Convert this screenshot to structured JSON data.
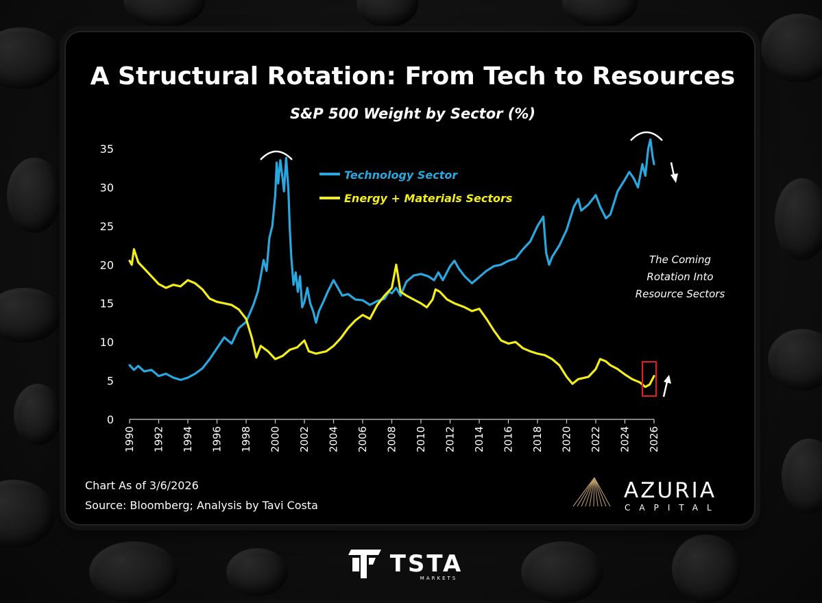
{
  "chart_data": {
    "type": "line",
    "title": "A Structural Rotation: From Tech to Resources",
    "subtitle": "S&P 500 Weight by Sector (%)",
    "ylim": [
      0,
      35
    ],
    "yticks": [
      "0",
      "5",
      "10",
      "15",
      "20",
      "25",
      "30",
      "35"
    ],
    "xticks": [
      "1990",
      "1992",
      "1994",
      "1996",
      "1998",
      "2000",
      "2002",
      "2004",
      "2006",
      "2008",
      "2010",
      "2012",
      "2014",
      "2016",
      "2018",
      "2020",
      "2022",
      "2024",
      "2026"
    ],
    "xlim": [
      1990,
      2026
    ],
    "series": [
      {
        "name": "Technology Sector",
        "color": "#29a8e0",
        "points": [
          [
            1990.0,
            7.0
          ],
          [
            1990.3,
            6.4
          ],
          [
            1990.6,
            6.9
          ],
          [
            1991.0,
            6.2
          ],
          [
            1991.5,
            6.4
          ],
          [
            1992.0,
            5.6
          ],
          [
            1992.5,
            5.9
          ],
          [
            1993.0,
            5.4
          ],
          [
            1993.5,
            5.1
          ],
          [
            1994.0,
            5.4
          ],
          [
            1994.5,
            5.9
          ],
          [
            1995.0,
            6.6
          ],
          [
            1995.5,
            7.8
          ],
          [
            1996.0,
            9.2
          ],
          [
            1996.5,
            10.6
          ],
          [
            1997.0,
            9.8
          ],
          [
            1997.5,
            11.8
          ],
          [
            1998.0,
            12.6
          ],
          [
            1998.5,
            14.8
          ],
          [
            1998.8,
            16.5
          ],
          [
            1999.0,
            18.5
          ],
          [
            1999.2,
            20.6
          ],
          [
            1999.4,
            19.2
          ],
          [
            1999.6,
            23.5
          ],
          [
            1999.8,
            25.0
          ],
          [
            2000.0,
            29.0
          ],
          [
            2000.1,
            33.2
          ],
          [
            2000.2,
            30.5
          ],
          [
            2000.35,
            33.5
          ],
          [
            2000.5,
            31.2
          ],
          [
            2000.6,
            29.5
          ],
          [
            2000.75,
            33.8
          ],
          [
            2000.9,
            29.8
          ],
          [
            2001.0,
            24.5
          ],
          [
            2001.1,
            21.0
          ],
          [
            2001.25,
            17.4
          ],
          [
            2001.4,
            19.0
          ],
          [
            2001.55,
            16.5
          ],
          [
            2001.7,
            18.5
          ],
          [
            2001.85,
            14.5
          ],
          [
            2002.0,
            15.2
          ],
          [
            2002.2,
            17.0
          ],
          [
            2002.4,
            15.0
          ],
          [
            2002.6,
            14.0
          ],
          [
            2002.8,
            12.5
          ],
          [
            2003.0,
            14.0
          ],
          [
            2003.3,
            15.2
          ],
          [
            2003.6,
            16.5
          ],
          [
            2004.0,
            18.0
          ],
          [
            2004.3,
            17.0
          ],
          [
            2004.6,
            16.0
          ],
          [
            2005.0,
            16.2
          ],
          [
            2005.5,
            15.5
          ],
          [
            2006.0,
            15.4
          ],
          [
            2006.5,
            14.8
          ],
          [
            2007.0,
            15.3
          ],
          [
            2007.5,
            15.6
          ],
          [
            2007.8,
            16.5
          ],
          [
            2008.0,
            16.3
          ],
          [
            2008.3,
            17.0
          ],
          [
            2008.6,
            16.0
          ],
          [
            2009.0,
            17.8
          ],
          [
            2009.5,
            18.6
          ],
          [
            2010.0,
            18.8
          ],
          [
            2010.5,
            18.5
          ],
          [
            2010.9,
            18.0
          ],
          [
            2011.2,
            19.0
          ],
          [
            2011.5,
            18.0
          ],
          [
            2012.0,
            19.8
          ],
          [
            2012.3,
            20.5
          ],
          [
            2012.6,
            19.5
          ],
          [
            2013.0,
            18.5
          ],
          [
            2013.5,
            17.6
          ],
          [
            2014.0,
            18.4
          ],
          [
            2014.5,
            19.2
          ],
          [
            2015.0,
            19.8
          ],
          [
            2015.5,
            20.0
          ],
          [
            2016.0,
            20.5
          ],
          [
            2016.5,
            20.8
          ],
          [
            2017.0,
            22.0
          ],
          [
            2017.5,
            23.0
          ],
          [
            2018.0,
            25.0
          ],
          [
            2018.4,
            26.2
          ],
          [
            2018.6,
            21.5
          ],
          [
            2018.8,
            20.0
          ],
          [
            2019.0,
            21.0
          ],
          [
            2019.5,
            22.5
          ],
          [
            2020.0,
            24.5
          ],
          [
            2020.5,
            27.5
          ],
          [
            2020.8,
            28.5
          ],
          [
            2021.0,
            27.0
          ],
          [
            2021.5,
            27.8
          ],
          [
            2022.0,
            29.0
          ],
          [
            2022.3,
            27.5
          ],
          [
            2022.7,
            26.0
          ],
          [
            2023.0,
            26.5
          ],
          [
            2023.5,
            29.5
          ],
          [
            2024.0,
            31.0
          ],
          [
            2024.3,
            32.0
          ],
          [
            2024.6,
            31.2
          ],
          [
            2024.9,
            30.0
          ],
          [
            2025.2,
            33.0
          ],
          [
            2025.4,
            31.5
          ],
          [
            2025.6,
            35.0
          ],
          [
            2025.75,
            36.2
          ],
          [
            2025.9,
            34.0
          ],
          [
            2026.0,
            33.0
          ]
        ]
      },
      {
        "name": "Energy + Materials Sectors",
        "color": "#f2ed1b",
        "points": [
          [
            1990.0,
            20.5
          ],
          [
            1990.15,
            20.0
          ],
          [
            1990.3,
            22.0
          ],
          [
            1990.6,
            20.3
          ],
          [
            1991.0,
            19.5
          ],
          [
            1991.5,
            18.5
          ],
          [
            1992.0,
            17.5
          ],
          [
            1992.5,
            17.0
          ],
          [
            1993.0,
            17.4
          ],
          [
            1993.5,
            17.2
          ],
          [
            1994.0,
            18.0
          ],
          [
            1994.5,
            17.6
          ],
          [
            1995.0,
            16.8
          ],
          [
            1995.5,
            15.6
          ],
          [
            1996.0,
            15.2
          ],
          [
            1996.5,
            15.0
          ],
          [
            1997.0,
            14.8
          ],
          [
            1997.5,
            14.2
          ],
          [
            1998.0,
            13.0
          ],
          [
            1998.4,
            10.5
          ],
          [
            1998.7,
            8.0
          ],
          [
            1999.0,
            9.5
          ],
          [
            1999.5,
            8.8
          ],
          [
            2000.0,
            7.8
          ],
          [
            2000.5,
            8.2
          ],
          [
            2001.0,
            9.0
          ],
          [
            2001.5,
            9.3
          ],
          [
            2002.0,
            10.2
          ],
          [
            2002.3,
            8.8
          ],
          [
            2002.8,
            8.5
          ],
          [
            2003.5,
            8.8
          ],
          [
            2004.0,
            9.5
          ],
          [
            2004.5,
            10.5
          ],
          [
            2005.0,
            11.8
          ],
          [
            2005.5,
            12.8
          ],
          [
            2006.0,
            13.5
          ],
          [
            2006.5,
            13.0
          ],
          [
            2007.0,
            14.8
          ],
          [
            2007.5,
            16.0
          ],
          [
            2008.0,
            17.0
          ],
          [
            2008.3,
            20.0
          ],
          [
            2008.6,
            16.5
          ],
          [
            2009.0,
            16.0
          ],
          [
            2009.5,
            15.5
          ],
          [
            2010.0,
            15.0
          ],
          [
            2010.4,
            14.5
          ],
          [
            2010.8,
            15.5
          ],
          [
            2011.0,
            16.8
          ],
          [
            2011.3,
            16.5
          ],
          [
            2011.8,
            15.5
          ],
          [
            2012.3,
            15.0
          ],
          [
            2013.0,
            14.5
          ],
          [
            2013.5,
            14.0
          ],
          [
            2014.0,
            14.3
          ],
          [
            2014.5,
            13.0
          ],
          [
            2015.0,
            11.5
          ],
          [
            2015.5,
            10.2
          ],
          [
            2016.0,
            9.8
          ],
          [
            2016.5,
            10.0
          ],
          [
            2017.0,
            9.2
          ],
          [
            2017.5,
            8.8
          ],
          [
            2018.0,
            8.5
          ],
          [
            2018.5,
            8.3
          ],
          [
            2019.0,
            7.8
          ],
          [
            2019.5,
            7.0
          ],
          [
            2020.0,
            5.5
          ],
          [
            2020.4,
            4.6
          ],
          [
            2020.8,
            5.2
          ],
          [
            2021.5,
            5.5
          ],
          [
            2022.0,
            6.5
          ],
          [
            2022.3,
            7.8
          ],
          [
            2022.7,
            7.5
          ],
          [
            2023.0,
            7.0
          ],
          [
            2023.5,
            6.5
          ],
          [
            2024.0,
            5.8
          ],
          [
            2024.5,
            5.2
          ],
          [
            2025.0,
            4.8
          ],
          [
            2025.4,
            4.2
          ],
          [
            2025.7,
            4.5
          ],
          [
            2026.0,
            5.6
          ]
        ]
      }
    ],
    "annotation": [
      "The Coming",
      "Rotation Into",
      "Resource Sectors"
    ],
    "source_lines": [
      "Chart As of 3/6/2026",
      "Source: Bloomberg; Analysis by Tavi Costa"
    ]
  },
  "brand": {
    "name": "AZURIA",
    "sub": "CAPITAL"
  },
  "footer_brand": {
    "name": "TSTA",
    "sub": "MARKETS"
  }
}
